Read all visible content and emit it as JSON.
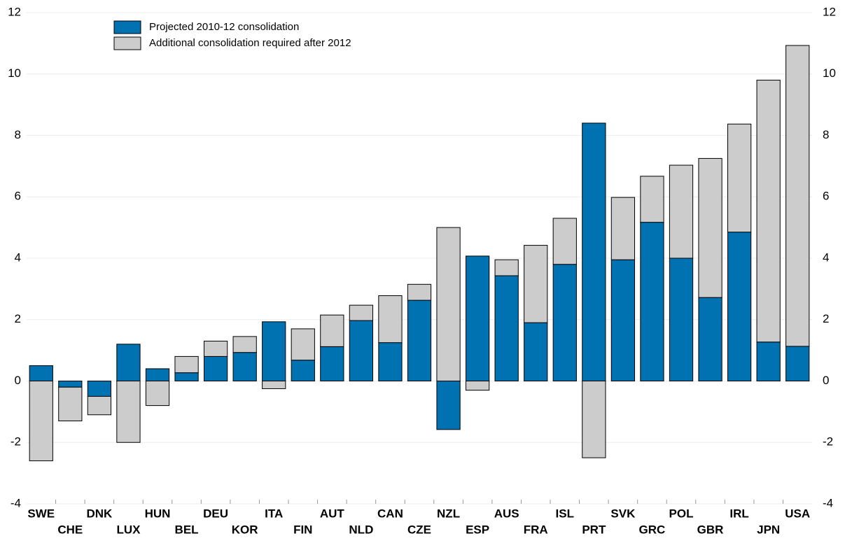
{
  "chart_data": {
    "type": "stacked-bar",
    "categories": [
      "SWE",
      "CHE",
      "DNK",
      "LUX",
      "HUN",
      "BEL",
      "DEU",
      "KOR",
      "ITA",
      "FIN",
      "AUT",
      "NLD",
      "CAN",
      "CZE",
      "NZL",
      "ESP",
      "AUS",
      "FRA",
      "ISL",
      "PRT",
      "SVK",
      "GRC",
      "POL",
      "GBR",
      "IRL",
      "JPN",
      "USA"
    ],
    "series": [
      {
        "name": "Projected 2010-12 consolidation",
        "color": "#0072b2",
        "values": [
          0.5,
          -0.2,
          -0.5,
          1.2,
          0.4,
          0.27,
          0.8,
          0.93,
          1.93,
          0.68,
          1.12,
          1.97,
          1.25,
          2.63,
          -1.58,
          4.07,
          3.43,
          1.9,
          3.8,
          8.4,
          3.95,
          5.17,
          4.0,
          2.72,
          4.85,
          1.27,
          1.13
        ]
      },
      {
        "name": "Additional consolidation required after 2012",
        "color": "#cccccc",
        "values": [
          -2.6,
          -1.1,
          -0.6,
          -2.0,
          -0.8,
          0.53,
          0.5,
          0.52,
          -0.25,
          1.02,
          1.03,
          0.5,
          1.53,
          0.52,
          5.0,
          -0.3,
          0.52,
          2.52,
          1.5,
          -2.5,
          2.03,
          1.5,
          3.03,
          4.53,
          3.52,
          8.53,
          9.8
        ]
      }
    ],
    "ylim": [
      -4,
      12
    ],
    "yticks": [
      -4,
      -2,
      0,
      2,
      4,
      6,
      8,
      10,
      12
    ],
    "grid": true,
    "legend": "top-left"
  }
}
